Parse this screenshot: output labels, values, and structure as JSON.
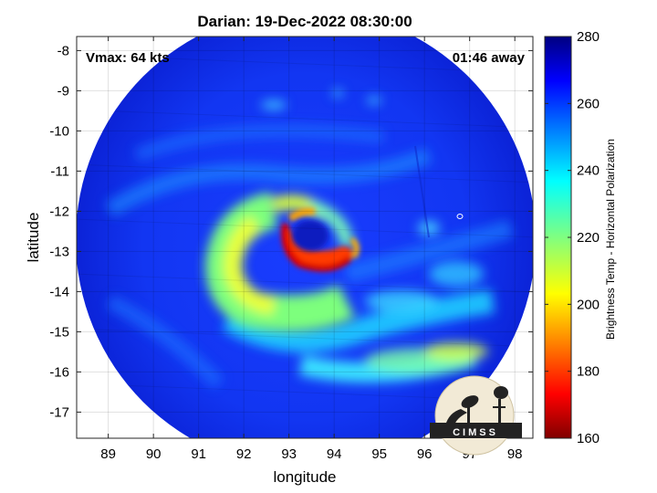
{
  "chart_data": {
    "type": "heatmap",
    "title": "Darian: 19-Dec-2022 08:30:00",
    "xlabel": "longitude",
    "ylabel": "latitude",
    "xlim": [
      88.3,
      98.4
    ],
    "ylim": [
      -17.65,
      -7.65
    ],
    "x_ticks": [
      89,
      90,
      91,
      92,
      93,
      94,
      95,
      96,
      97,
      98
    ],
    "y_ticks": [
      -8,
      -9,
      -10,
      -11,
      -12,
      -13,
      -14,
      -15,
      -16,
      -17
    ],
    "grid": true,
    "annotations": {
      "left": "Vmax: 64 kts",
      "right": "01:46 away"
    },
    "colorbar": {
      "label": "Brightness Temp - Horizontal Polarization",
      "range": [
        160,
        280
      ],
      "ticks": [
        280,
        260,
        240,
        220,
        200,
        180,
        160
      ],
      "colormap": "jet"
    },
    "swath_center": {
      "lon": 93.35,
      "lat": -12.65
    },
    "background_value": 262,
    "features": [
      {
        "name": "eyewall",
        "lon": 93.4,
        "lat": -13.1,
        "value": 180
      },
      {
        "name": "eye",
        "lon": 93.45,
        "lat": -12.55,
        "value": 262
      },
      {
        "name": "spiral band",
        "lon": 92.1,
        "lat": -14.2,
        "value": 205
      },
      {
        "name": "outer rainband",
        "lon": 96.5,
        "lat": -15.7,
        "value": 228
      }
    ],
    "logo_text": "CIMSS"
  }
}
